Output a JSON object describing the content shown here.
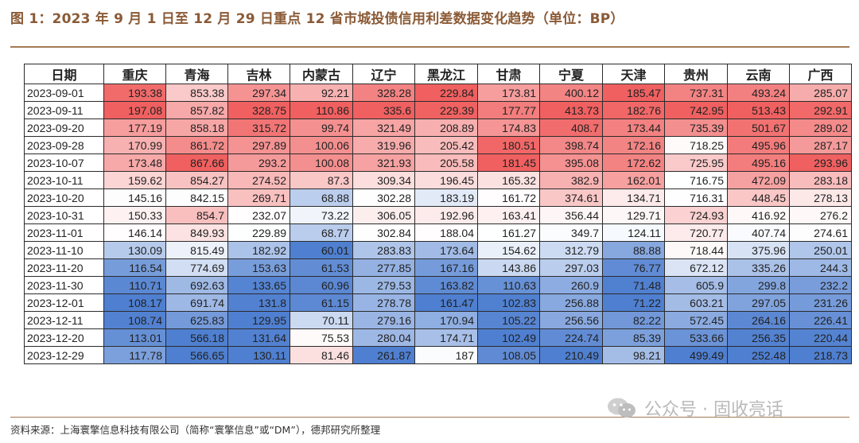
{
  "title": "图 1：2023 年 9 月 1 日至 12 月 29 日重点 12 省市城投债信用利差数据变化趋势（单位：BP）",
  "source": "资料来源：上海寰擎信息科技有限公司（简称“寰擎信息”或“DM”），德邦研究所整理",
  "watermark": "公众号 · 固收亮话",
  "colors": {
    "high": "#f06060",
    "mid": "#ffffff",
    "low": "#4f7fd0",
    "frame": "#a47a55",
    "title": "#8a5a36"
  },
  "chart_data": {
    "type": "table",
    "columns": [
      "日期",
      "重庆",
      "青海",
      "吉林",
      "内蒙古",
      "辽宁",
      "黑龙江",
      "甘肃",
      "宁夏",
      "天津",
      "贵州",
      "云南",
      "广西"
    ],
    "rows": [
      [
        "2023-09-01",
        "193.38",
        "853.38",
        "297.34",
        "92.21",
        "328.28",
        "229.84",
        "173.81",
        "400.12",
        "185.47",
        "737.31",
        "493.24",
        "285.07"
      ],
      [
        "2023-09-11",
        "197.08",
        "857.82",
        "328.75",
        "110.86",
        "335.6",
        "229.39",
        "177.77",
        "413.73",
        "182.76",
        "742.95",
        "513.43",
        "292.91"
      ],
      [
        "2023-09-20",
        "177.19",
        "858.18",
        "315.72",
        "99.74",
        "321.49",
        "208.89",
        "174.83",
        "408.7",
        "173.44",
        "735.39",
        "501.67",
        "289.02"
      ],
      [
        "2023-09-28",
        "170.99",
        "861.72",
        "297.89",
        "100.06",
        "319.96",
        "205.42",
        "180.51",
        "398.74",
        "172.16",
        "718.25",
        "495.96",
        "287.17"
      ],
      [
        "2023-10-07",
        "173.48",
        "867.66",
        "293.2",
        "100.08",
        "321.93",
        "205.58",
        "181.45",
        "395.08",
        "172.62",
        "725.95",
        "495.16",
        "293.96"
      ],
      [
        "2023-10-11",
        "159.62",
        "854.27",
        "274.52",
        "87.3",
        "309.34",
        "196.45",
        "165.32",
        "382.9",
        "162.01",
        "716.75",
        "472.09",
        "283.18"
      ],
      [
        "2023-10-20",
        "145.16",
        "842.15",
        "269.71",
        "68.88",
        "302.28",
        "183.19",
        "161.72",
        "374.61",
        "134.71",
        "716.31",
        "448.45",
        "278.13"
      ],
      [
        "2023-10-31",
        "150.33",
        "854.7",
        "232.07",
        "73.22",
        "306.05",
        "192.96",
        "163.41",
        "356.44",
        "129.71",
        "724.93",
        "416.92",
        "276.2"
      ],
      [
        "2023-11-01",
        "146.14",
        "849.93",
        "229.89",
        "68.77",
        "302.84",
        "188.04",
        "161.27",
        "349.7",
        "124.11",
        "720.77",
        "407.74",
        "274.61"
      ],
      [
        "2023-11-10",
        "130.09",
        "815.49",
        "182.92",
        "60.01",
        "283.83",
        "173.64",
        "154.62",
        "312.79",
        "88.88",
        "718.44",
        "375.96",
        "250.01"
      ],
      [
        "2023-11-20",
        "116.54",
        "774.69",
        "153.63",
        "61.53",
        "277.85",
        "167.16",
        "143.86",
        "297.03",
        "76.77",
        "672.12",
        "335.26",
        "244.3"
      ],
      [
        "2023-11-30",
        "110.71",
        "692.63",
        "133.65",
        "60.96",
        "279.53",
        "163.82",
        "110.63",
        "260.9",
        "71.48",
        "605.9",
        "299.8",
        "232.2"
      ],
      [
        "2023-12-01",
        "108.17",
        "691.74",
        "131.8",
        "61.15",
        "278.78",
        "161.47",
        "102.83",
        "256.88",
        "71.22",
        "603.21",
        "297.05",
        "231.26"
      ],
      [
        "2023-12-11",
        "108.74",
        "625.83",
        "129.95",
        "70.11",
        "279.16",
        "170.94",
        "105.22",
        "256.56",
        "82.22",
        "572.45",
        "264.16",
        "226.41"
      ],
      [
        "2023-12-20",
        "113.01",
        "566.18",
        "131.64",
        "75.53",
        "280.04",
        "174.71",
        "102.49",
        "224.74",
        "85.39",
        "533.66",
        "256.35",
        "220.44"
      ],
      [
        "2023-12-29",
        "117.78",
        "566.65",
        "130.11",
        "81.46",
        "261.87",
        "187",
        "108.05",
        "210.49",
        "98.21",
        "499.49",
        "252.48",
        "218.73"
      ]
    ]
  }
}
